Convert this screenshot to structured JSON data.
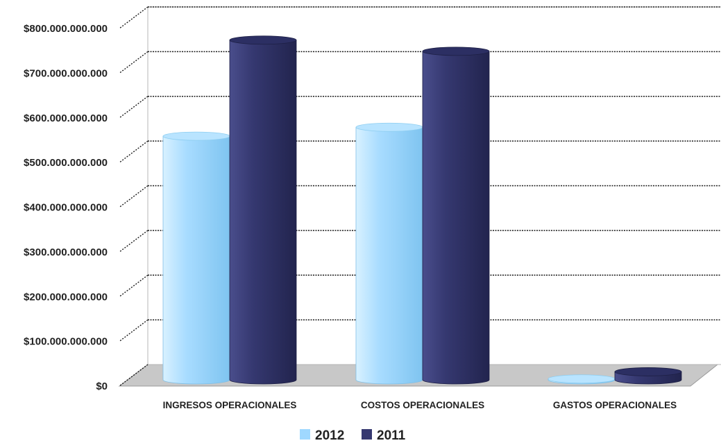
{
  "chart_data": {
    "type": "bar",
    "categories": [
      "INGRESOS OPERACIONALES",
      "COSTOS OPERACIONALES",
      "GASTOS OPERACIONALES"
    ],
    "series": [
      {
        "name": "2012",
        "values": [
          545000000000,
          565000000000,
          2000000000
        ],
        "color": "#9fd8ff"
      },
      {
        "name": "2011",
        "values": [
          760000000000,
          735000000000,
          18000000000
        ],
        "color": "#353870"
      }
    ],
    "y_tick_labels": [
      "$0",
      "$100.000.000.000",
      "$200.000.000.000",
      "$300.000.000.000",
      "$400.000.000.000",
      "$500.000.000.000",
      "$600.000.000.000",
      "$700.000.000.000",
      "$800.000.000.000"
    ],
    "ylim": [
      0,
      800000000000
    ],
    "grid": true,
    "legend": "bottom",
    "style": "3d-cylinder",
    "floor_color": "#c8c8c8"
  }
}
